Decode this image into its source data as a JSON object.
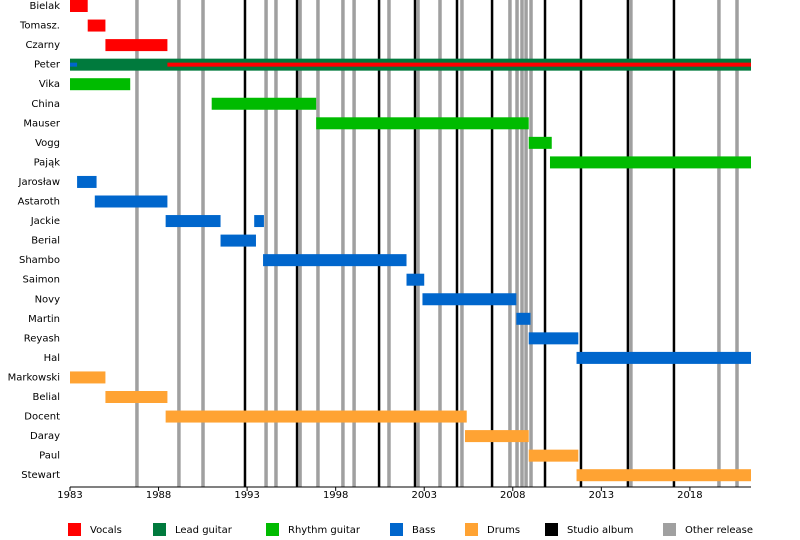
{
  "chart_data": {
    "type": "timeline",
    "xlim": [
      1983,
      2021.45
    ],
    "xticks": [
      1983,
      1988,
      1993,
      1998,
      2003,
      2008,
      2013,
      2018
    ],
    "roles": [
      {
        "name": "Vocals",
        "color": "#ff0000"
      },
      {
        "name": "Lead guitar",
        "color": "#007a3d"
      },
      {
        "name": "Rhythm guitar",
        "color": "#00bb00"
      },
      {
        "name": "Bass",
        "color": "#0066cc"
      },
      {
        "name": "Drums",
        "color": "#ffa333"
      }
    ],
    "releases": [
      {
        "name": "Studio album",
        "color": "#000000",
        "x": [
          1992.88,
          1995.82,
          2000.45,
          2002.48,
          2004.85,
          2006.83,
          2009.82,
          2011.85,
          2014.5,
          2017.1
        ]
      },
      {
        "name": "Other release",
        "color": "#a0a0a0",
        "x": [
          1986.78,
          1989.15,
          1990.51,
          1994.07,
          1994.63,
          1995.99,
          1997.0,
          1998.41,
          1999.04,
          2001.01,
          2002.65,
          2003.89,
          2005.13,
          2007.84,
          2008.24,
          2008.52,
          2008.75,
          2009.03,
          2014.67,
          2019.64,
          2020.66
        ]
      }
    ],
    "members": [
      {
        "name": "Bielak",
        "spans": [
          {
            "role": "Vocals",
            "start": 1983,
            "end": 1984
          }
        ]
      },
      {
        "name": "Tomasz.",
        "spans": [
          {
            "role": "Vocals",
            "start": 1984,
            "end": 1985
          }
        ]
      },
      {
        "name": "Czarny",
        "spans": [
          {
            "role": "Vocals",
            "start": 1985,
            "end": 1988.5
          }
        ]
      },
      {
        "name": "Peter",
        "spans": [
          {
            "role": "Lead guitar",
            "start": 1983,
            "end": 2021.45
          },
          {
            "role": "Bass",
            "start": 1983,
            "end": 1983.4
          },
          {
            "role": "Vocals",
            "start": 1988.5,
            "end": 2021.45
          }
        ]
      },
      {
        "name": "Vika",
        "spans": [
          {
            "role": "Rhythm guitar",
            "start": 1983,
            "end": 1986.4
          }
        ]
      },
      {
        "name": "China",
        "spans": [
          {
            "role": "Rhythm guitar",
            "start": 1991.0,
            "end": 1996.9
          }
        ]
      },
      {
        "name": "Mauser",
        "spans": [
          {
            "role": "Rhythm guitar",
            "start": 1996.9,
            "end": 2008.9
          }
        ]
      },
      {
        "name": "Vogg",
        "spans": [
          {
            "role": "Rhythm guitar",
            "start": 2008.9,
            "end": 2010.2
          }
        ]
      },
      {
        "name": "Pająk",
        "spans": [
          {
            "role": "Rhythm guitar",
            "start": 2010.1,
            "end": 2021.45
          }
        ]
      },
      {
        "name": "Jarosław",
        "spans": [
          {
            "role": "Bass",
            "start": 1983.4,
            "end": 1984.5
          }
        ]
      },
      {
        "name": "Astaroth",
        "spans": [
          {
            "role": "Bass",
            "start": 1984.4,
            "end": 1988.5
          }
        ]
      },
      {
        "name": "Jackie",
        "spans": [
          {
            "role": "Bass",
            "start": 1988.4,
            "end": 1991.5
          },
          {
            "role": "Bass",
            "start": 1993.4,
            "end": 1993.95
          }
        ]
      },
      {
        "name": "Berial",
        "spans": [
          {
            "role": "Bass",
            "start": 1991.5,
            "end": 1993.5
          }
        ]
      },
      {
        "name": "Shambo",
        "spans": [
          {
            "role": "Bass",
            "start": 1993.9,
            "end": 2002.0
          }
        ]
      },
      {
        "name": "Saimon",
        "spans": [
          {
            "role": "Bass",
            "start": 2002.0,
            "end": 2003.0
          }
        ]
      },
      {
        "name": "Novy",
        "spans": [
          {
            "role": "Bass",
            "start": 2002.9,
            "end": 2008.2
          }
        ]
      },
      {
        "name": "Martin",
        "spans": [
          {
            "role": "Bass",
            "start": 2008.2,
            "end": 2009.0
          }
        ]
      },
      {
        "name": "Reyash",
        "spans": [
          {
            "role": "Bass",
            "start": 2008.9,
            "end": 2011.7
          }
        ]
      },
      {
        "name": "Hal",
        "spans": [
          {
            "role": "Bass",
            "start": 2011.6,
            "end": 2021.45
          }
        ]
      },
      {
        "name": "Markowski",
        "spans": [
          {
            "role": "Drums",
            "start": 1983,
            "end": 1985
          }
        ]
      },
      {
        "name": "Belial",
        "spans": [
          {
            "role": "Drums",
            "start": 1985,
            "end": 1988.5
          }
        ]
      },
      {
        "name": "Docent",
        "spans": [
          {
            "role": "Drums",
            "start": 1988.4,
            "end": 2005.4
          }
        ]
      },
      {
        "name": "Daray",
        "spans": [
          {
            "role": "Drums",
            "start": 2005.3,
            "end": 2008.9
          }
        ]
      },
      {
        "name": "Paul",
        "spans": [
          {
            "role": "Drums",
            "start": 2008.9,
            "end": 2011.7
          }
        ]
      },
      {
        "name": "Stewart",
        "spans": [
          {
            "role": "Drums",
            "start": 2011.6,
            "end": 2021.45
          }
        ]
      }
    ]
  }
}
